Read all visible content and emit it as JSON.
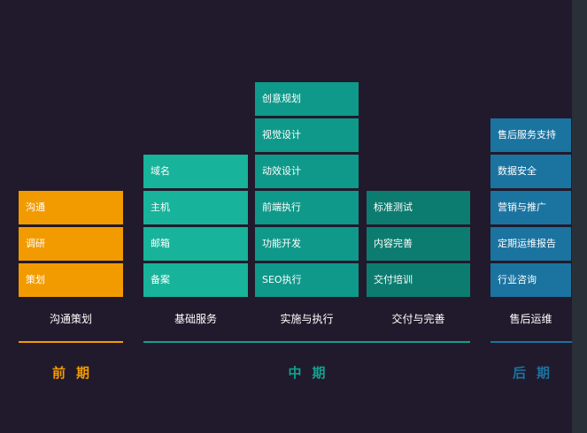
{
  "columns": [
    {
      "title": "沟通策划",
      "color": "#f29b00",
      "items": [
        "沟通",
        "调研",
        "策划"
      ]
    },
    {
      "title": "基础服务",
      "color": "#17b39a",
      "items": [
        "域名",
        "主机",
        "邮箱",
        "备案"
      ]
    },
    {
      "title": "实施与执行",
      "color": "#0f998a",
      "items": [
        "创意规划",
        "视觉设计",
        "动效设计",
        "前端执行",
        "功能开发",
        "SEO执行"
      ]
    },
    {
      "title": "交付与完善",
      "color": "#0d7c70",
      "items": [
        "标准测试",
        "内容完善",
        "交付培训"
      ]
    },
    {
      "title": "售后运维",
      "color": "#1b73a0",
      "items": [
        "售后服务支持",
        "数据安全",
        "营销与推广",
        "定期运维报告",
        "行业咨询"
      ]
    }
  ],
  "phases": [
    {
      "label": "前期",
      "color": "#f29b00"
    },
    {
      "label": "中期",
      "color": "#11a08e"
    },
    {
      "label": "后期",
      "color": "#1b73a0"
    }
  ]
}
